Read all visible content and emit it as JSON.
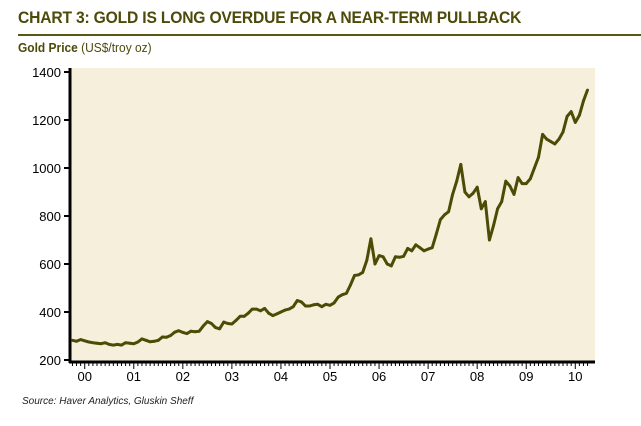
{
  "title": "CHART 3: GOLD IS LONG OVERDUE FOR A NEAR-TERM PULLBACK",
  "subtitle_bold": "Gold Price",
  "subtitle_unit": "(US$/troy oz)",
  "source": "Source: Haver Analytics, Gluskin Sheff",
  "colors": {
    "line": "#4d4b05",
    "plot_bg": "#f5efdc",
    "title": "#4d4a0a"
  },
  "chart_data": {
    "type": "line",
    "title": "Gold Price",
    "ylabel": "US$/troy oz",
    "xlabel": "",
    "ylim": [
      200,
      1400
    ],
    "xlim": [
      2000.2,
      2010.8
    ],
    "y_ticks": [
      200,
      400,
      600,
      800,
      1000,
      1200,
      1400
    ],
    "x_tick_labels": [
      "00",
      "01",
      "02",
      "03",
      "04",
      "05",
      "06",
      "07",
      "08",
      "09",
      "10"
    ],
    "grid": false,
    "x_start": 2000.25,
    "x_step_months": 1,
    "series": [
      {
        "name": "Gold Price",
        "values": [
          282,
          278,
          285,
          280,
          275,
          272,
          270,
          268,
          272,
          265,
          262,
          265,
          262,
          272,
          270,
          268,
          275,
          288,
          282,
          276,
          278,
          282,
          296,
          295,
          302,
          316,
          322,
          315,
          310,
          320,
          318,
          320,
          342,
          360,
          352,
          335,
          330,
          358,
          352,
          350,
          365,
          382,
          382,
          395,
          412,
          412,
          405,
          415,
          395,
          385,
          392,
          400,
          408,
          412,
          422,
          448,
          442,
          425,
          425,
          430,
          432,
          422,
          432,
          428,
          438,
          462,
          472,
          478,
          512,
          552,
          555,
          565,
          615,
          705,
          600,
          635,
          630,
          600,
          592,
          630,
          628,
          632,
          665,
          655,
          680,
          668,
          655,
          662,
          668,
          725,
          785,
          805,
          818,
          890,
          945,
          1015,
          900,
          880,
          895,
          920,
          830,
          860,
          700,
          760,
          830,
          860,
          945,
          925,
          890,
          960,
          935,
          935,
          955,
          1000,
          1045,
          1140,
          1120,
          1110,
          1100,
          1120,
          1150,
          1215,
          1235,
          1190,
          1220,
          1280,
          1325
        ]
      }
    ]
  }
}
